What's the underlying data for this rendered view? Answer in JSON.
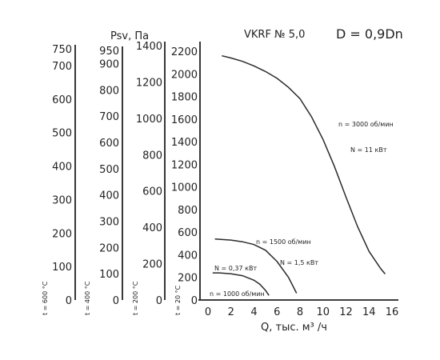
{
  "chart_data": {
    "type": "line",
    "title": "VKRF № 5,0",
    "subtitle": "D = 0,9Dn",
    "xlabel": "Q, тыс. м³ /ч",
    "ylabel": "Psv, Па",
    "xlim": [
      0,
      16
    ],
    "xticks": [
      "0",
      "2",
      "4",
      "6",
      "8",
      "10",
      "12",
      "14",
      "16"
    ],
    "main_axis": {
      "label": "t = 20 °C",
      "ylim": [
        0,
        2200
      ],
      "ticks": [
        "0",
        "200",
        "400",
        "600",
        "800",
        "1000",
        "1200",
        "1400",
        "1600",
        "1800",
        "2000",
        "2200"
      ]
    },
    "extra_axes": [
      {
        "label": "t = 600 °C",
        "ylim": [
          0,
          750
        ],
        "ticks": [
          "0",
          "100",
          "200",
          "300",
          "400",
          "500",
          "600",
          "700",
          "750"
        ]
      },
      {
        "label": "t = 400 °C",
        "ylim": [
          0,
          950
        ],
        "ticks": [
          "0",
          "100",
          "200",
          "300",
          "400",
          "500",
          "600",
          "700",
          "800",
          "900",
          "950"
        ]
      },
      {
        "label": "t = 200 °C",
        "ylim": [
          0,
          1400
        ],
        "ticks": [
          "0",
          "200",
          "400",
          "600",
          "800",
          "1000",
          "1200",
          "1400"
        ]
      }
    ],
    "series": [
      {
        "name": "n = 3000 об/мин",
        "power": "N = 11 кВт",
        "x": [
          1.2,
          2,
          3,
          4,
          5,
          6,
          7,
          8,
          9,
          10,
          11,
          12,
          13,
          14,
          15,
          15.4
        ],
        "y": [
          2160,
          2140,
          2110,
          2070,
          2020,
          1960,
          1880,
          1780,
          1620,
          1420,
          1180,
          910,
          650,
          430,
          280,
          230
        ]
      },
      {
        "name": "n = 1500 об/мин",
        "power": "N = 1,5 кВт",
        "x": [
          0.6,
          2,
          3,
          4,
          5,
          6,
          7,
          7.7
        ],
        "y": [
          540,
          530,
          515,
          490,
          440,
          340,
          200,
          60
        ]
      },
      {
        "name": "n = 1000 об/мин",
        "power": "N = 0,37 кВт",
        "x": [
          0.4,
          1,
          2,
          3,
          4,
          4.5,
          5,
          5.3
        ],
        "y": [
          240,
          240,
          232,
          215,
          175,
          140,
          85,
          40
        ]
      }
    ],
    "legend": "labels on curves",
    "grid": false
  }
}
